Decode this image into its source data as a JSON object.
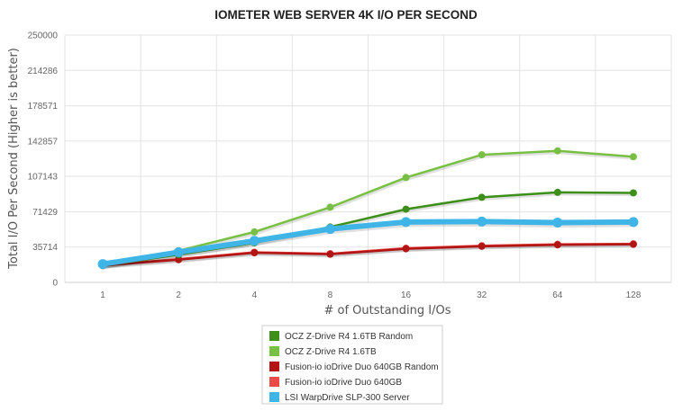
{
  "chart_data": {
    "type": "line",
    "title": "IOMETER WEB SERVER 4K I/O PER SECOND",
    "xlabel": "# of Outstanding I/Os",
    "ylabel": "Total I/O Per Second (Higher is better)",
    "categories": [
      "1",
      "2",
      "4",
      "8",
      "16",
      "32",
      "64",
      "128"
    ],
    "yticks": [
      "0",
      "35714",
      "71429",
      "107143",
      "142857",
      "178571",
      "214286",
      "250000"
    ],
    "ylim": [
      0,
      250000
    ],
    "grid": true,
    "legend_position": "bottom",
    "series": [
      {
        "name": "OCZ Z-Drive R4 1.6TB Random",
        "color": "#3d8f1a",
        "values": [
          17000,
          28000,
          40000,
          56000,
          74000,
          86000,
          91000,
          90500
        ]
      },
      {
        "name": "OCZ Z-Drive R4 1.6TB",
        "color": "#78c043",
        "values": [
          18000,
          32000,
          51000,
          76000,
          106000,
          129000,
          133000,
          127000
        ]
      },
      {
        "name": "Fusion-io ioDrive Duo 640GB Random",
        "color": "#b31515",
        "values": [
          17000,
          23000,
          30000,
          28500,
          34000,
          36500,
          38000,
          38500
        ]
      },
      {
        "name": "Fusion-io ioDrive Duo 640GB",
        "color": "#ec4a46",
        "values": [
          17500,
          23500,
          30500,
          29000,
          34500,
          37000,
          38500,
          39000
        ]
      },
      {
        "name": "LSI WarpDrive SLP-300 Server",
        "color": "#3fb4e6",
        "values": [
          18500,
          30500,
          42000,
          54000,
          61000,
          61500,
          60500,
          61000
        ]
      }
    ]
  }
}
